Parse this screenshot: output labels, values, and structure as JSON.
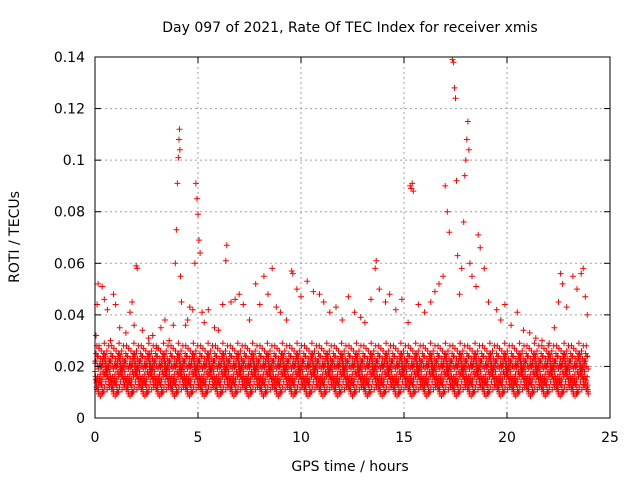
{
  "chart_data": {
    "type": "scatter",
    "title": "Day 097 of 2021, Rate Of TEC Index for receiver xmis",
    "xlabel": "GPS time / hours",
    "ylabel": "ROTI / TECUs",
    "xlim": [
      0,
      25
    ],
    "ylim": [
      0,
      0.14
    ],
    "xticks": [
      0,
      5,
      10,
      15,
      20,
      25
    ],
    "xtick_labels": [
      "0",
      "5",
      "10",
      "15",
      "20",
      "25"
    ],
    "yticks": [
      0,
      0.02,
      0.04,
      0.06,
      0.08,
      0.1,
      0.12,
      0.14
    ],
    "ytick_labels": [
      "0",
      "0.02",
      "0.04",
      "0.06",
      "0.08",
      "0.1",
      "0.12",
      "0.14"
    ],
    "grid": true,
    "marker": "+",
    "color": "#ff0000",
    "series": [
      {
        "name": "ROTI",
        "points": [
          [
            0.05,
            0.032
          ],
          [
            0.1,
            0.044
          ],
          [
            0.15,
            0.052
          ],
          [
            0.2,
            0.028
          ],
          [
            0.35,
            0.051
          ],
          [
            0.45,
            0.046
          ],
          [
            0.6,
            0.042
          ],
          [
            0.75,
            0.03
          ],
          [
            0.9,
            0.048
          ],
          [
            1.0,
            0.044
          ],
          [
            1.2,
            0.035
          ],
          [
            1.5,
            0.033
          ],
          [
            1.7,
            0.041
          ],
          [
            1.8,
            0.045
          ],
          [
            1.9,
            0.036
          ],
          [
            2.0,
            0.059
          ],
          [
            2.05,
            0.058
          ],
          [
            2.3,
            0.034
          ],
          [
            2.6,
            0.031
          ],
          [
            2.8,
            0.032
          ],
          [
            3.0,
            0.027
          ],
          [
            3.2,
            0.035
          ],
          [
            3.4,
            0.038
          ],
          [
            3.6,
            0.03
          ],
          [
            3.8,
            0.036
          ],
          [
            3.9,
            0.06
          ],
          [
            3.95,
            0.073
          ],
          [
            4.0,
            0.091
          ],
          [
            4.05,
            0.101
          ],
          [
            4.08,
            0.108
          ],
          [
            4.1,
            0.112
          ],
          [
            4.12,
            0.104
          ],
          [
            4.15,
            0.055
          ],
          [
            4.2,
            0.045
          ],
          [
            4.4,
            0.036
          ],
          [
            4.5,
            0.038
          ],
          [
            4.6,
            0.043
          ],
          [
            4.75,
            0.042
          ],
          [
            4.85,
            0.06
          ],
          [
            4.9,
            0.091
          ],
          [
            4.95,
            0.085
          ],
          [
            5.0,
            0.079
          ],
          [
            5.05,
            0.069
          ],
          [
            5.1,
            0.064
          ],
          [
            5.2,
            0.041
          ],
          [
            5.3,
            0.037
          ],
          [
            5.5,
            0.042
          ],
          [
            5.8,
            0.035
          ],
          [
            6.0,
            0.034
          ],
          [
            6.2,
            0.044
          ],
          [
            6.35,
            0.061
          ],
          [
            6.4,
            0.067
          ],
          [
            6.6,
            0.045
          ],
          [
            6.8,
            0.046
          ],
          [
            7.0,
            0.048
          ],
          [
            7.2,
            0.044
          ],
          [
            7.5,
            0.038
          ],
          [
            7.8,
            0.052
          ],
          [
            8.0,
            0.044
          ],
          [
            8.2,
            0.055
          ],
          [
            8.4,
            0.048
          ],
          [
            8.6,
            0.058
          ],
          [
            8.8,
            0.043
          ],
          [
            9.0,
            0.041
          ],
          [
            9.3,
            0.038
          ],
          [
            9.55,
            0.057
          ],
          [
            9.6,
            0.056
          ],
          [
            9.8,
            0.05
          ],
          [
            10.0,
            0.047
          ],
          [
            10.3,
            0.053
          ],
          [
            10.6,
            0.049
          ],
          [
            10.9,
            0.048
          ],
          [
            11.1,
            0.045
          ],
          [
            11.4,
            0.041
          ],
          [
            11.7,
            0.043
          ],
          [
            12.0,
            0.038
          ],
          [
            12.3,
            0.047
          ],
          [
            12.6,
            0.041
          ],
          [
            12.9,
            0.039
          ],
          [
            13.1,
            0.037
          ],
          [
            13.4,
            0.046
          ],
          [
            13.6,
            0.058
          ],
          [
            13.65,
            0.061
          ],
          [
            13.8,
            0.05
          ],
          [
            14.1,
            0.045
          ],
          [
            14.3,
            0.048
          ],
          [
            14.6,
            0.042
          ],
          [
            14.9,
            0.046
          ],
          [
            15.2,
            0.037
          ],
          [
            15.3,
            0.09
          ],
          [
            15.35,
            0.089
          ],
          [
            15.4,
            0.091
          ],
          [
            15.45,
            0.088
          ],
          [
            15.7,
            0.044
          ],
          [
            16.0,
            0.041
          ],
          [
            16.3,
            0.045
          ],
          [
            16.5,
            0.049
          ],
          [
            16.7,
            0.052
          ],
          [
            16.9,
            0.055
          ],
          [
            17.0,
            0.09
          ],
          [
            17.1,
            0.08
          ],
          [
            17.2,
            0.072
          ],
          [
            17.35,
            0.139
          ],
          [
            17.4,
            0.138
          ],
          [
            17.45,
            0.128
          ],
          [
            17.5,
            0.124
          ],
          [
            17.55,
            0.092
          ],
          [
            17.6,
            0.063
          ],
          [
            17.7,
            0.048
          ],
          [
            17.8,
            0.058
          ],
          [
            17.9,
            0.076
          ],
          [
            17.95,
            0.094
          ],
          [
            18.0,
            0.1
          ],
          [
            18.05,
            0.108
          ],
          [
            18.1,
            0.115
          ],
          [
            18.15,
            0.104
          ],
          [
            18.2,
            0.06
          ],
          [
            18.3,
            0.055
          ],
          [
            18.5,
            0.051
          ],
          [
            18.6,
            0.071
          ],
          [
            18.7,
            0.066
          ],
          [
            18.9,
            0.058
          ],
          [
            19.1,
            0.045
          ],
          [
            19.5,
            0.042
          ],
          [
            19.7,
            0.038
          ],
          [
            19.9,
            0.044
          ],
          [
            20.2,
            0.036
          ],
          [
            20.5,
            0.041
          ],
          [
            20.8,
            0.034
          ],
          [
            21.1,
            0.033
          ],
          [
            21.4,
            0.031
          ],
          [
            21.7,
            0.03
          ],
          [
            22.0,
            0.028
          ],
          [
            22.3,
            0.035
          ],
          [
            22.5,
            0.045
          ],
          [
            22.6,
            0.056
          ],
          [
            22.7,
            0.052
          ],
          [
            22.9,
            0.043
          ],
          [
            23.2,
            0.055
          ],
          [
            23.4,
            0.05
          ],
          [
            23.6,
            0.056
          ],
          [
            23.7,
            0.058
          ],
          [
            23.8,
            0.047
          ],
          [
            23.9,
            0.04
          ]
        ],
        "baseline": {
          "x_start": 0,
          "x_end": 23.95,
          "typical_range": [
            0.005,
            0.03
          ],
          "dense_pattern": [
            0.018,
            0.022,
            0.015,
            0.025,
            0.012,
            0.028,
            0.02,
            0.016,
            0.024,
            0.011,
            0.019,
            0.027,
            0.014,
            0.021,
            0.017,
            0.023,
            0.013,
            0.026,
            0.02,
            0.015,
            0.022,
            0.01,
            0.018,
            0.025,
            0.016,
            0.029,
            0.012,
            0.02,
            0.024,
            0.014,
            0.021,
            0.017,
            0.026,
            0.011,
            0.019,
            0.023,
            0.015,
            0.028,
            0.013,
            0.022
          ]
        }
      }
    ]
  }
}
